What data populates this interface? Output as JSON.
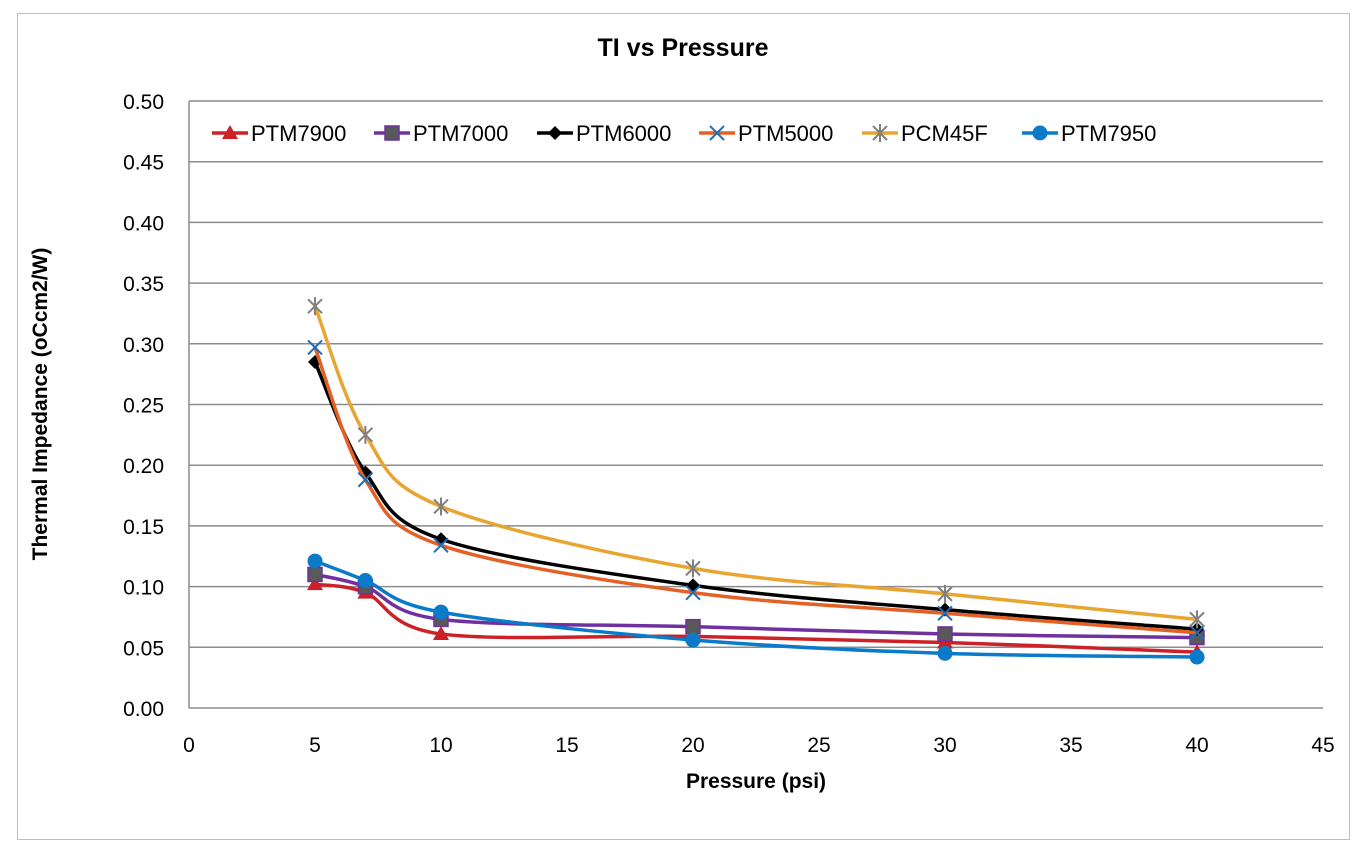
{
  "chart_data": {
    "type": "line",
    "title": "TI vs Pressure",
    "xlabel": "Pressure (psi)",
    "ylabel": "Thermal Impedance (oCcm2/W)",
    "xlim": [
      0,
      45
    ],
    "ylim": [
      0,
      0.5
    ],
    "x_ticks": [
      0,
      5,
      10,
      15,
      20,
      25,
      30,
      35,
      40,
      45
    ],
    "x_tick_labels": [
      "0",
      "5",
      "10",
      "15",
      "20",
      "25",
      "30",
      "35",
      "40",
      "45"
    ],
    "y_ticks": [
      0,
      0.05,
      0.1,
      0.15,
      0.2,
      0.25,
      0.3,
      0.35,
      0.4,
      0.45,
      0.5
    ],
    "y_tick_labels": [
      "0.00",
      "0.05",
      "0.10",
      "0.15",
      "0.20",
      "0.25",
      "0.30",
      "0.35",
      "0.40",
      "0.45",
      "0.50"
    ],
    "grid": "horizontal",
    "legend_position": "top",
    "smoothed": true,
    "x": [
      5,
      7,
      10,
      20,
      30,
      40
    ],
    "series": [
      {
        "name": "PTM7900",
        "color": "#cc2127",
        "marker": "triangle",
        "marker_color": "#cc2127",
        "values": [
          0.102,
          0.095,
          0.061,
          0.059,
          0.054,
          0.046
        ]
      },
      {
        "name": "PTM7000",
        "color": "#7030a0",
        "marker": "square",
        "marker_color": "#595959",
        "values": [
          0.11,
          0.1,
          0.073,
          0.067,
          0.061,
          0.058
        ]
      },
      {
        "name": "PTM6000",
        "color": "#000000",
        "marker": "diamond",
        "marker_color": "#000000",
        "values": [
          0.285,
          0.194,
          0.139,
          0.101,
          0.081,
          0.065
        ]
      },
      {
        "name": "PTM5000",
        "color": "#e46025",
        "marker": "x",
        "marker_color": "#1f6eb5",
        "values": [
          0.297,
          0.188,
          0.134,
          0.095,
          0.078,
          0.062
        ]
      },
      {
        "name": "PCM45F",
        "color": "#e8a531",
        "marker": "star",
        "marker_color": "#808080",
        "values": [
          0.331,
          0.225,
          0.166,
          0.115,
          0.094,
          0.073
        ]
      },
      {
        "name": "PTM7950",
        "color": "#0a7ac9",
        "marker": "circle",
        "marker_color": "#0a7ac9",
        "values": [
          0.121,
          0.105,
          0.079,
          0.056,
          0.045,
          0.042
        ]
      }
    ]
  }
}
